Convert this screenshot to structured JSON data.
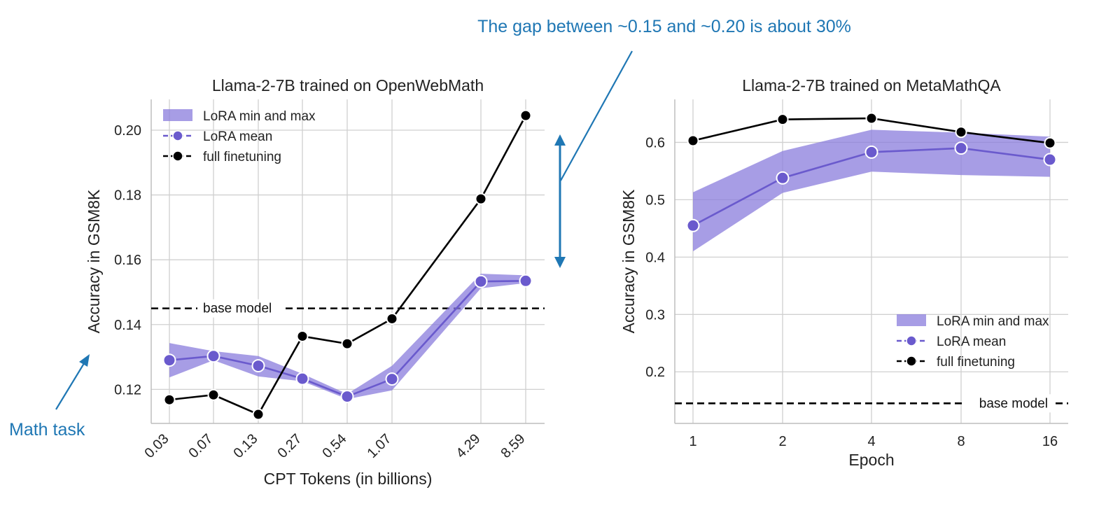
{
  "colors": {
    "lora": "#6a5acd",
    "lora_band": "#8a7cdc",
    "full": "#000000",
    "annotation": "#1f77b4",
    "grid": "#d0d0d0"
  },
  "annotations": {
    "gap_text": "The gap between ~0.15 and ~0.20 is about 30%",
    "task_text": "Math task"
  },
  "chart_data": [
    {
      "type": "line",
      "title": "Llama-2-7B trained on OpenWebMath",
      "xlabel": "CPT Tokens (in billions)",
      "ylabel": "Accuracy in GSM8K",
      "x_tick_labels": [
        "0.03",
        "0.07",
        "0.13",
        "0.27",
        "0.54",
        "1.07",
        "4.29",
        "8.59"
      ],
      "y_ticks": [
        "0.12",
        "0.14",
        "0.16",
        "0.18",
        "0.20"
      ],
      "y_tick_values": [
        0.12,
        0.14,
        0.16,
        0.18,
        0.2
      ],
      "ylim": [
        0.1095,
        0.2095
      ],
      "grid": true,
      "legend_position": "top-left",
      "legend": [
        "LoRA min and max",
        "LoRA mean",
        "full finetuning"
      ],
      "series": [
        {
          "name": "LoRA mean",
          "values": [
            0.129,
            0.1303,
            0.1273,
            0.1233,
            0.1178,
            0.1232,
            0.1533,
            0.1535
          ]
        },
        {
          "name": "full finetuning",
          "values": [
            0.1168,
            0.1183,
            0.1123,
            0.1364,
            0.1341,
            0.1418,
            0.1788,
            0.2045
          ]
        }
      ],
      "lora_min": [
        0.1237,
        0.129,
        0.124,
        0.1225,
        0.117,
        0.1197,
        0.1512,
        0.1528
      ],
      "lora_max": [
        0.1343,
        0.1318,
        0.1303,
        0.1248,
        0.1186,
        0.1273,
        0.1557,
        0.1552
      ],
      "baseline": {
        "label": "base model",
        "value": 0.145
      }
    },
    {
      "type": "line",
      "title": "Llama-2-7B trained on MetaMathQA",
      "xlabel": "Epoch",
      "ylabel": "Accuracy in GSM8K",
      "x_tick_labels": [
        "1",
        "2",
        "4",
        "8",
        "16"
      ],
      "y_ticks": [
        "0.2",
        "0.3",
        "0.4",
        "0.5",
        "0.6"
      ],
      "y_tick_values": [
        0.2,
        0.3,
        0.4,
        0.5,
        0.6
      ],
      "ylim": [
        0.11,
        0.675
      ],
      "grid": true,
      "legend_position": "lower-right",
      "legend": [
        "LoRA min and max",
        "LoRA mean",
        "full finetuning"
      ],
      "series": [
        {
          "name": "LoRA mean",
          "values": [
            0.455,
            0.538,
            0.583,
            0.59,
            0.57
          ]
        },
        {
          "name": "full finetuning",
          "values": [
            0.603,
            0.64,
            0.642,
            0.618,
            0.599
          ]
        }
      ],
      "lora_min": [
        0.41,
        0.512,
        0.549,
        0.543,
        0.54
      ],
      "lora_max": [
        0.513,
        0.585,
        0.622,
        0.617,
        0.61
      ],
      "baseline": {
        "label": "base model",
        "value": 0.145
      }
    }
  ]
}
